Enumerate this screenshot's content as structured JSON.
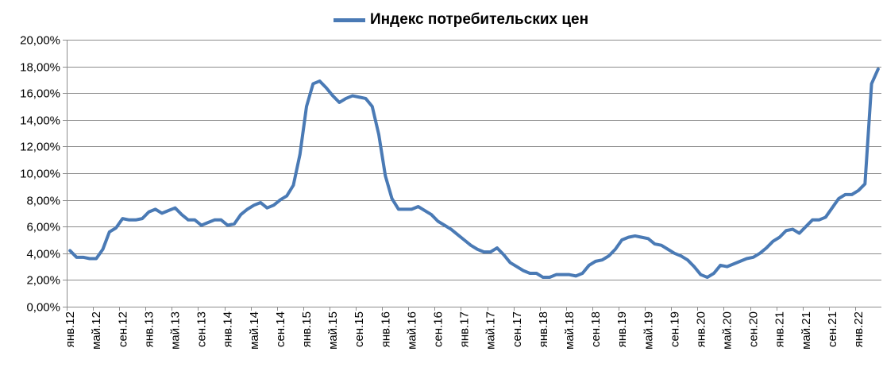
{
  "chart_data": {
    "type": "line",
    "legend_position": "top-center",
    "grid": true,
    "ylim": [
      0,
      20
    ],
    "yticks": [
      0,
      2,
      4,
      6,
      8,
      10,
      12,
      14,
      16,
      18,
      20
    ],
    "ytick_labels": [
      "0,00%",
      "2,00%",
      "4,00%",
      "6,00%",
      "8,00%",
      "10,00%",
      "12,00%",
      "14,00%",
      "16,00%",
      "18,00%",
      "20,00%"
    ],
    "x_start": "янв.12",
    "x_end": "мар.22",
    "xtick_labels": [
      "янв.12",
      "май.12",
      "сен.12",
      "янв.13",
      "май.13",
      "сен.13",
      "янв.14",
      "май.14",
      "сен.14",
      "янв.15",
      "май.15",
      "сен.15",
      "янв.16",
      "май.16",
      "сен.16",
      "янв.17",
      "май.17",
      "сен.17",
      "янв.18",
      "май.18",
      "сен.18",
      "янв.19",
      "май.19",
      "сен.19",
      "янв.20",
      "май.20",
      "сен.20",
      "янв.21",
      "май.21",
      "сен.21",
      "янв.22"
    ],
    "colors": {
      "series": "#4a7ab5",
      "grid": "#8c8c8c",
      "axis": "#8c8c8c"
    },
    "series": [
      {
        "name": "Индекс потребительских цен",
        "values": [
          4.2,
          3.7,
          3.7,
          3.6,
          3.6,
          4.3,
          5.6,
          5.9,
          6.6,
          6.5,
          6.5,
          6.6,
          7.1,
          7.3,
          7.0,
          7.2,
          7.4,
          6.9,
          6.5,
          6.5,
          6.1,
          6.3,
          6.5,
          6.5,
          6.1,
          6.2,
          6.9,
          7.3,
          7.6,
          7.8,
          7.4,
          7.6,
          8.0,
          8.3,
          9.1,
          11.4,
          15.0,
          16.7,
          16.9,
          16.4,
          15.8,
          15.3,
          15.6,
          15.8,
          15.7,
          15.6,
          15.0,
          12.9,
          9.8,
          8.1,
          7.3,
          7.3,
          7.3,
          7.5,
          7.2,
          6.9,
          6.4,
          6.1,
          5.8,
          5.4,
          5.0,
          4.6,
          4.3,
          4.1,
          4.1,
          4.4,
          3.9,
          3.3,
          3.0,
          2.7,
          2.5,
          2.5,
          2.2,
          2.2,
          2.4,
          2.4,
          2.4,
          2.3,
          2.5,
          3.1,
          3.4,
          3.5,
          3.8,
          4.3,
          5.0,
          5.2,
          5.3,
          5.2,
          5.1,
          4.7,
          4.6,
          4.3,
          4.0,
          3.8,
          3.5,
          3.0,
          2.4,
          2.2,
          2.5,
          3.1,
          3.0,
          3.2,
          3.4,
          3.6,
          3.7,
          4.0,
          4.4,
          4.9,
          5.2,
          5.7,
          5.8,
          5.5,
          6.0,
          6.5,
          6.5,
          6.7,
          7.4,
          8.1,
          8.4,
          8.4,
          8.7,
          9.2,
          16.7,
          17.8
        ]
      }
    ]
  }
}
